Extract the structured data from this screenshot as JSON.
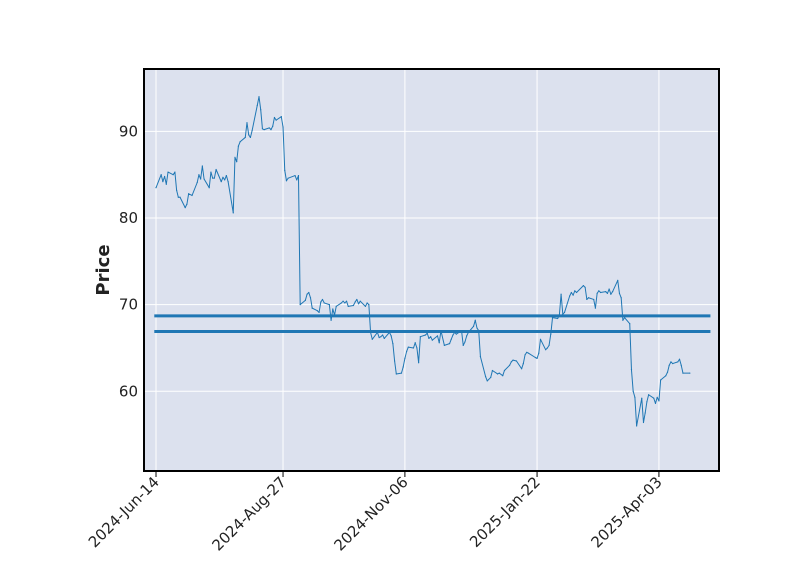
{
  "chart_data": {
    "type": "line",
    "title": "",
    "xlabel": "",
    "ylabel": "Price",
    "x_tick_labels": [
      "2024-Jun-14",
      "2024-Aug-27",
      "2024-Nov-06",
      "2025-Jan-22",
      "2025-Apr-03"
    ],
    "y_ticks": [
      60,
      70,
      80,
      90
    ],
    "ylim": [
      50.8,
      97.2
    ],
    "xlim": [
      "2024-Jun-07",
      "2025-May-08"
    ],
    "grid": true,
    "legend": "none",
    "colors": {
      "background": "#dce1ee",
      "grid": "#ffffff",
      "line": "#1f77b4",
      "frame": "#000000"
    },
    "series": [
      {
        "values": [
          {
            "x": "2024-Jun-14",
            "y": 83.5
          },
          {
            "x": "2024-Jun-17",
            "y": 85.0
          },
          {
            "x": "2024-Jun-18",
            "y": 84.2
          },
          {
            "x": "2024-Jun-19",
            "y": 84.8
          },
          {
            "x": "2024-Jun-20",
            "y": 83.9
          },
          {
            "x": "2024-Jun-21",
            "y": 85.3
          },
          {
            "x": "2024-Jun-24",
            "y": 85.0
          },
          {
            "x": "2024-Jun-25",
            "y": 85.3
          },
          {
            "x": "2024-Jun-26",
            "y": 83.2
          },
          {
            "x": "2024-Jun-27",
            "y": 82.4
          },
          {
            "x": "2024-Jun-28",
            "y": 82.4
          },
          {
            "x": "2024-Jul-01",
            "y": 81.2
          },
          {
            "x": "2024-Jul-02",
            "y": 81.6
          },
          {
            "x": "2024-Jul-03",
            "y": 82.8
          },
          {
            "x": "2024-Jul-05",
            "y": 82.6
          },
          {
            "x": "2024-Jul-08",
            "y": 84.1
          },
          {
            "x": "2024-Jul-09",
            "y": 85.0
          },
          {
            "x": "2024-Jul-10",
            "y": 84.5
          },
          {
            "x": "2024-Jul-11",
            "y": 86.0
          },
          {
            "x": "2024-Jul-12",
            "y": 84.5
          },
          {
            "x": "2024-Jul-15",
            "y": 83.5
          },
          {
            "x": "2024-Jul-16",
            "y": 85.3
          },
          {
            "x": "2024-Jul-17",
            "y": 84.6
          },
          {
            "x": "2024-Jul-18",
            "y": 84.6
          },
          {
            "x": "2024-Jul-19",
            "y": 85.6
          },
          {
            "x": "2024-Jul-22",
            "y": 84.2
          },
          {
            "x": "2024-Jul-23",
            "y": 84.7
          },
          {
            "x": "2024-Jul-24",
            "y": 84.4
          },
          {
            "x": "2024-Jul-25",
            "y": 84.9
          },
          {
            "x": "2024-Jul-26",
            "y": 84.2
          },
          {
            "x": "2024-Jul-29",
            "y": 80.6
          },
          {
            "x": "2024-Jul-30",
            "y": 87.0
          },
          {
            "x": "2024-Jul-31",
            "y": 86.5
          },
          {
            "x": "2024-Aug-01",
            "y": 88.3
          },
          {
            "x": "2024-Aug-02",
            "y": 88.8
          },
          {
            "x": "2024-Aug-05",
            "y": 89.3
          },
          {
            "x": "2024-Aug-06",
            "y": 91.0
          },
          {
            "x": "2024-Aug-07",
            "y": 89.6
          },
          {
            "x": "2024-Aug-08",
            "y": 89.3
          },
          {
            "x": "2024-Aug-09",
            "y": 90.1
          },
          {
            "x": "2024-Aug-12",
            "y": 93.0
          },
          {
            "x": "2024-Aug-13",
            "y": 94.0
          },
          {
            "x": "2024-Aug-14",
            "y": 92.5
          },
          {
            "x": "2024-Aug-15",
            "y": 90.3
          },
          {
            "x": "2024-Aug-16",
            "y": 90.2
          },
          {
            "x": "2024-Aug-19",
            "y": 90.4
          },
          {
            "x": "2024-Aug-20",
            "y": 90.2
          },
          {
            "x": "2024-Aug-21",
            "y": 90.6
          },
          {
            "x": "2024-Aug-22",
            "y": 91.6
          },
          {
            "x": "2024-Aug-23",
            "y": 91.3
          },
          {
            "x": "2024-Aug-26",
            "y": 91.7
          },
          {
            "x": "2024-Aug-27",
            "y": 90.5
          },
          {
            "x": "2024-Aug-28",
            "y": 85.5
          },
          {
            "x": "2024-Aug-29",
            "y": 84.3
          },
          {
            "x": "2024-Aug-30",
            "y": 84.6
          },
          {
            "x": "2024-Sep-03",
            "y": 84.9
          },
          {
            "x": "2024-Sep-04",
            "y": 84.4
          },
          {
            "x": "2024-Sep-05",
            "y": 84.9
          },
          {
            "x": "2024-Sep-06",
            "y": 70.0
          },
          {
            "x": "2024-Sep-09",
            "y": 70.5
          },
          {
            "x": "2024-Sep-10",
            "y": 71.2
          },
          {
            "x": "2024-Sep-11",
            "y": 71.4
          },
          {
            "x": "2024-Sep-12",
            "y": 70.8
          },
          {
            "x": "2024-Sep-13",
            "y": 69.6
          },
          {
            "x": "2024-Sep-16",
            "y": 69.3
          },
          {
            "x": "2024-Sep-17",
            "y": 69.1
          },
          {
            "x": "2024-Sep-18",
            "y": 70.3
          },
          {
            "x": "2024-Sep-19",
            "y": 70.6
          },
          {
            "x": "2024-Sep-20",
            "y": 70.2
          },
          {
            "x": "2024-Sep-23",
            "y": 70.0
          },
          {
            "x": "2024-Sep-24",
            "y": 68.2
          },
          {
            "x": "2024-Sep-25",
            "y": 69.5
          },
          {
            "x": "2024-Sep-26",
            "y": 68.8
          },
          {
            "x": "2024-Sep-27",
            "y": 69.8
          },
          {
            "x": "2024-Sep-30",
            "y": 70.2
          },
          {
            "x": "2024-Oct-01",
            "y": 70.4
          },
          {
            "x": "2024-Oct-02",
            "y": 70.2
          },
          {
            "x": "2024-Oct-03",
            "y": 70.4
          },
          {
            "x": "2024-Oct-04",
            "y": 69.8
          },
          {
            "x": "2024-Oct-07",
            "y": 69.9
          },
          {
            "x": "2024-Oct-08",
            "y": 70.3
          },
          {
            "x": "2024-Oct-09",
            "y": 70.6
          },
          {
            "x": "2024-Oct-10",
            "y": 70.1
          },
          {
            "x": "2024-Oct-11",
            "y": 70.4
          },
          {
            "x": "2024-Oct-14",
            "y": 69.8
          },
          {
            "x": "2024-Oct-15",
            "y": 70.2
          },
          {
            "x": "2024-Oct-16",
            "y": 70.0
          },
          {
            "x": "2024-Oct-17",
            "y": 66.8
          },
          {
            "x": "2024-Oct-18",
            "y": 66.0
          },
          {
            "x": "2024-Oct-21",
            "y": 66.8
          },
          {
            "x": "2024-Oct-22",
            "y": 66.2
          },
          {
            "x": "2024-Oct-23",
            "y": 66.3
          },
          {
            "x": "2024-Oct-24",
            "y": 66.5
          },
          {
            "x": "2024-Oct-25",
            "y": 66.1
          },
          {
            "x": "2024-Oct-28",
            "y": 66.8
          },
          {
            "x": "2024-Oct-29",
            "y": 66.4
          },
          {
            "x": "2024-Oct-30",
            "y": 65.5
          },
          {
            "x": "2024-Oct-31",
            "y": 63.5
          },
          {
            "x": "2024-Nov-01",
            "y": 62.0
          },
          {
            "x": "2024-Nov-04",
            "y": 62.1
          },
          {
            "x": "2024-Nov-05",
            "y": 62.8
          },
          {
            "x": "2024-Nov-06",
            "y": 63.8
          },
          {
            "x": "2024-Nov-07",
            "y": 64.6
          },
          {
            "x": "2024-Nov-08",
            "y": 65.1
          },
          {
            "x": "2024-Nov-11",
            "y": 65.0
          },
          {
            "x": "2024-Nov-12",
            "y": 65.6
          },
          {
            "x": "2024-Nov-13",
            "y": 65.0
          },
          {
            "x": "2024-Nov-14",
            "y": 63.3
          },
          {
            "x": "2024-Nov-15",
            "y": 66.3
          },
          {
            "x": "2024-Nov-18",
            "y": 66.5
          },
          {
            "x": "2024-Nov-19",
            "y": 66.7
          },
          {
            "x": "2024-Nov-20",
            "y": 66.1
          },
          {
            "x": "2024-Nov-21",
            "y": 66.3
          },
          {
            "x": "2024-Nov-22",
            "y": 65.9
          },
          {
            "x": "2024-Nov-25",
            "y": 66.4
          },
          {
            "x": "2024-Nov-26",
            "y": 65.6
          },
          {
            "x": "2024-Nov-27",
            "y": 67.0
          },
          {
            "x": "2024-Nov-29",
            "y": 65.3
          },
          {
            "x": "2024-Dec-02",
            "y": 65.5
          },
          {
            "x": "2024-Dec-03",
            "y": 66.0
          },
          {
            "x": "2024-Dec-04",
            "y": 66.5
          },
          {
            "x": "2024-Dec-05",
            "y": 66.8
          },
          {
            "x": "2024-Dec-06",
            "y": 66.6
          },
          {
            "x": "2024-Dec-09",
            "y": 67.0
          },
          {
            "x": "2024-Dec-10",
            "y": 65.3
          },
          {
            "x": "2024-Dec-11",
            "y": 65.7
          },
          {
            "x": "2024-Dec-12",
            "y": 66.4
          },
          {
            "x": "2024-Dec-13",
            "y": 66.8
          },
          {
            "x": "2024-Dec-16",
            "y": 67.5
          },
          {
            "x": "2024-Dec-17",
            "y": 68.2
          },
          {
            "x": "2024-Dec-18",
            "y": 67.3
          },
          {
            "x": "2024-Dec-19",
            "y": 67.0
          },
          {
            "x": "2024-Dec-20",
            "y": 64.0
          },
          {
            "x": "2024-Dec-23",
            "y": 61.7
          },
          {
            "x": "2024-Dec-24",
            "y": 61.2
          },
          {
            "x": "2024-Dec-26",
            "y": 61.6
          },
          {
            "x": "2024-Dec-27",
            "y": 62.4
          },
          {
            "x": "2024-Dec-30",
            "y": 62.0
          },
          {
            "x": "2024-Dec-31",
            "y": 62.1
          },
          {
            "x": "2025-Jan-02",
            "y": 61.8
          },
          {
            "x": "2025-Jan-03",
            "y": 62.4
          },
          {
            "x": "2025-Jan-06",
            "y": 63.0
          },
          {
            "x": "2025-Jan-07",
            "y": 63.4
          },
          {
            "x": "2025-Jan-08",
            "y": 63.6
          },
          {
            "x": "2025-Jan-10",
            "y": 63.5
          },
          {
            "x": "2025-Jan-13",
            "y": 62.6
          },
          {
            "x": "2025-Jan-14",
            "y": 63.2
          },
          {
            "x": "2025-Jan-15",
            "y": 64.2
          },
          {
            "x": "2025-Jan-16",
            "y": 64.5
          },
          {
            "x": "2025-Jan-17",
            "y": 64.4
          },
          {
            "x": "2025-Jan-21",
            "y": 63.9
          },
          {
            "x": "2025-Jan-22",
            "y": 63.8
          },
          {
            "x": "2025-Jan-23",
            "y": 64.4
          },
          {
            "x": "2025-Jan-24",
            "y": 66.0
          },
          {
            "x": "2025-Jan-27",
            "y": 64.8
          },
          {
            "x": "2025-Jan-28",
            "y": 65.0
          },
          {
            "x": "2025-Jan-29",
            "y": 65.3
          },
          {
            "x": "2025-Jan-30",
            "y": 66.6
          },
          {
            "x": "2025-Jan-31",
            "y": 68.5
          },
          {
            "x": "2025-Feb-03",
            "y": 68.4
          },
          {
            "x": "2025-Feb-04",
            "y": 68.8
          },
          {
            "x": "2025-Feb-05",
            "y": 71.2
          },
          {
            "x": "2025-Feb-06",
            "y": 68.9
          },
          {
            "x": "2025-Feb-07",
            "y": 69.1
          },
          {
            "x": "2025-Feb-10",
            "y": 71.0
          },
          {
            "x": "2025-Feb-11",
            "y": 71.4
          },
          {
            "x": "2025-Feb-12",
            "y": 71.1
          },
          {
            "x": "2025-Feb-13",
            "y": 71.6
          },
          {
            "x": "2025-Feb-14",
            "y": 71.4
          },
          {
            "x": "2025-Feb-18",
            "y": 72.2
          },
          {
            "x": "2025-Feb-19",
            "y": 72.0
          },
          {
            "x": "2025-Feb-20",
            "y": 70.6
          },
          {
            "x": "2025-Feb-21",
            "y": 70.8
          },
          {
            "x": "2025-Feb-24",
            "y": 70.6
          },
          {
            "x": "2025-Feb-25",
            "y": 69.6
          },
          {
            "x": "2025-Feb-26",
            "y": 71.3
          },
          {
            "x": "2025-Feb-27",
            "y": 71.6
          },
          {
            "x": "2025-Feb-28",
            "y": 71.4
          },
          {
            "x": "2025-Mar-03",
            "y": 71.5
          },
          {
            "x": "2025-Mar-04",
            "y": 71.3
          },
          {
            "x": "2025-Mar-05",
            "y": 71.8
          },
          {
            "x": "2025-Mar-06",
            "y": 71.2
          },
          {
            "x": "2025-Mar-07",
            "y": 71.5
          },
          {
            "x": "2025-Mar-10",
            "y": 72.8
          },
          {
            "x": "2025-Mar-11",
            "y": 71.3
          },
          {
            "x": "2025-Mar-12",
            "y": 70.8
          },
          {
            "x": "2025-Mar-13",
            "y": 68.2
          },
          {
            "x": "2025-Mar-14",
            "y": 68.5
          },
          {
            "x": "2025-Mar-17",
            "y": 67.8
          },
          {
            "x": "2025-Mar-18",
            "y": 62.5
          },
          {
            "x": "2025-Mar-19",
            "y": 60.0
          },
          {
            "x": "2025-Mar-20",
            "y": 59.3
          },
          {
            "x": "2025-Mar-21",
            "y": 56.0
          },
          {
            "x": "2025-Mar-24",
            "y": 59.2
          },
          {
            "x": "2025-Mar-25",
            "y": 56.4
          },
          {
            "x": "2025-Mar-26",
            "y": 57.5
          },
          {
            "x": "2025-Mar-27",
            "y": 58.8
          },
          {
            "x": "2025-Mar-28",
            "y": 59.6
          },
          {
            "x": "2025-Mar-31",
            "y": 59.2
          },
          {
            "x": "2025-Apr-01",
            "y": 58.6
          },
          {
            "x": "2025-Apr-02",
            "y": 59.3
          },
          {
            "x": "2025-Apr-03",
            "y": 58.9
          },
          {
            "x": "2025-Apr-04",
            "y": 61.3
          },
          {
            "x": "2025-Apr-07",
            "y": 61.8
          },
          {
            "x": "2025-Apr-08",
            "y": 62.2
          },
          {
            "x": "2025-Apr-09",
            "y": 63.0
          },
          {
            "x": "2025-Apr-10",
            "y": 63.4
          },
          {
            "x": "2025-Apr-11",
            "y": 63.2
          },
          {
            "x": "2025-Apr-14",
            "y": 63.4
          },
          {
            "x": "2025-Apr-15",
            "y": 63.7
          },
          {
            "x": "2025-Apr-16",
            "y": 63.0
          },
          {
            "x": "2025-Apr-17",
            "y": 62.1
          },
          {
            "x": "2025-Apr-21",
            "y": 62.1
          }
        ]
      }
    ],
    "hlines": [
      {
        "x_start": "2024-Jun-13",
        "x_end": "2025-May-03",
        "y": 68.7
      },
      {
        "x_start": "2024-Jun-13",
        "x_end": "2025-May-03",
        "y": 66.9
      }
    ]
  }
}
